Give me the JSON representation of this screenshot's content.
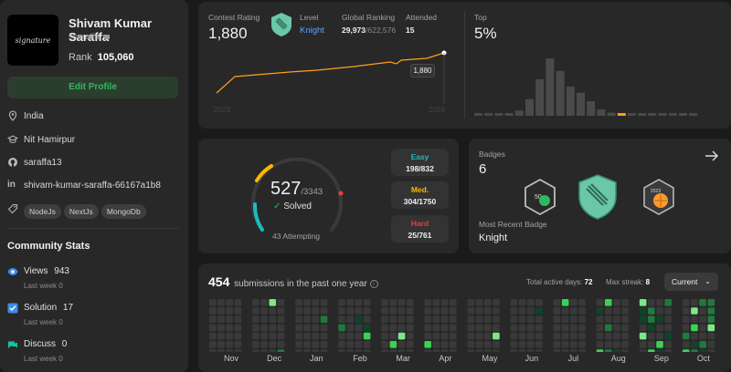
{
  "profile": {
    "name": "Shivam Kumar Saraffa",
    "username": "ssaraffa",
    "rank_label": "Rank",
    "rank_value": "105,060",
    "edit_button": "Edit Profile",
    "location": "India",
    "school": "Nit Hamirpur",
    "github": "saraffa13",
    "linkedin": "shivam-kumar-saraffa-66167a1b8",
    "skills": [
      "NodeJs",
      "NextJs",
      "MongoDb"
    ]
  },
  "community": {
    "title": "Community Stats",
    "items": [
      {
        "label": "Views",
        "value": "943",
        "sub": "Last week 0"
      },
      {
        "label": "Solution",
        "value": "17",
        "sub": "Last week 0"
      },
      {
        "label": "Discuss",
        "value": "0",
        "sub": "Last week 0"
      }
    ]
  },
  "contest": {
    "rating_label": "Contest Rating",
    "rating_value": "1,880",
    "level_label": "Level",
    "level_value": "Knight",
    "global_label": "Global Ranking",
    "global_rank": "29,973",
    "global_total": "/622,576",
    "attended_label": "Attended",
    "attended_value": "15",
    "tooltip": "1,880",
    "year_start": "2023",
    "year_end": "2024",
    "top_label": "Top",
    "top_value": "5%",
    "histogram": [
      0,
      0,
      0,
      0,
      5,
      16,
      35,
      55,
      43,
      28,
      22,
      14,
      6,
      3,
      2,
      2,
      2,
      2,
      2,
      2,
      2,
      2
    ],
    "highlight_index": 14
  },
  "solved": {
    "solved_count": "527",
    "total": "/3343",
    "solved_label": "Solved",
    "attempting": "43 Attempting",
    "easy_label": "Easy",
    "easy_value": "198/832",
    "med_label": "Med.",
    "med_value": "304/1750",
    "hard_label": "Hard",
    "hard_value": "25/761"
  },
  "badges": {
    "title": "Badges",
    "count": "6",
    "recent_label": "Most Recent Badge",
    "recent_name": "Knight",
    "badge_texts": [
      "50",
      "2023"
    ]
  },
  "submissions": {
    "count": "454",
    "text": "submissions in the past one year",
    "active_label": "Total active days:",
    "active_value": "72",
    "streak_label": "Max streak:",
    "streak_value": "8",
    "dropdown": "Current",
    "months": [
      "Nov",
      "Dec",
      "Jan",
      "Feb",
      "Mar",
      "Apr",
      "May",
      "Jun",
      "Jul",
      "Aug",
      "Sep",
      "Oct"
    ]
  },
  "colors": {
    "easy": "#1cbaba",
    "medium": "#ffb700",
    "hard": "#f63737",
    "accent_green": "#2cbb5d",
    "knight": "#5aa7ff"
  }
}
